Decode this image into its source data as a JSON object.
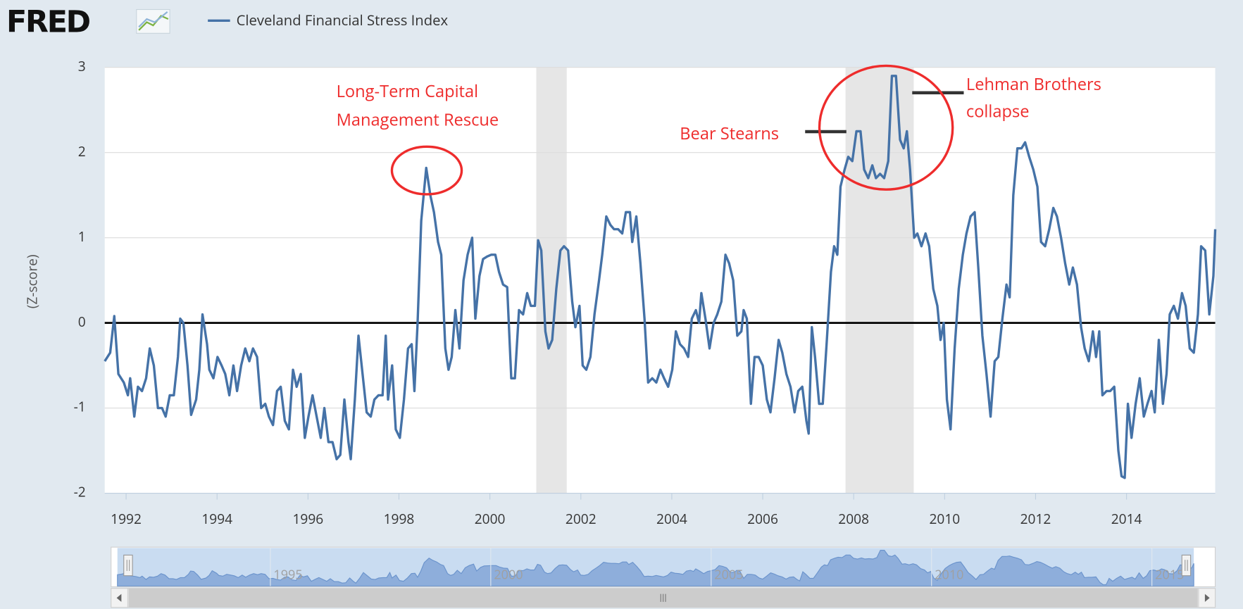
{
  "brand": "FRED",
  "chart_data": {
    "type": "line",
    "y_label": "(Z-score)",
    "xlim": [
      1991.53,
      2015.95
    ],
    "xticks": [
      1992,
      1994,
      1996,
      1998,
      2000,
      2002,
      2004,
      2006,
      2008,
      2010,
      2012,
      2014
    ],
    "ylim": [
      -2,
      3
    ],
    "yticks": [
      -2,
      -1,
      0,
      1,
      2,
      3
    ],
    "grid": true,
    "recessions": [
      [
        2001.02,
        2001.69
      ],
      [
        2007.82,
        2009.32
      ]
    ],
    "navigator_xticks": [
      1995,
      2000,
      2005,
      2010,
      2015
    ],
    "annotations": [
      [
        "Long-Term Capital",
        "Management Rescue"
      ],
      [
        "Bear Stearns"
      ],
      [
        "Lehman Brothers",
        "collapse"
      ]
    ],
    "x": [
      1991.53,
      1991.65,
      1991.74,
      1991.83,
      1991.95,
      1992.04,
      1992.09,
      1992.18,
      1992.26,
      1992.35,
      1992.44,
      1992.52,
      1992.61,
      1992.7,
      1992.79,
      1992.87,
      1992.96,
      1993.05,
      1993.14,
      1993.19,
      1993.26,
      1993.35,
      1993.43,
      1993.54,
      1993.61,
      1993.68,
      1993.78,
      1993.83,
      1993.92,
      1994.01,
      1994.1,
      1994.18,
      1994.27,
      1994.36,
      1994.44,
      1994.53,
      1994.62,
      1994.71,
      1994.79,
      1994.88,
      1994.97,
      1995.06,
      1995.14,
      1995.23,
      1995.32,
      1995.4,
      1995.49,
      1995.58,
      1995.67,
      1995.75,
      1995.84,
      1995.93,
      1996.01,
      1996.1,
      1996.19,
      1996.28,
      1996.36,
      1996.45,
      1996.54,
      1996.63,
      1996.71,
      1996.8,
      1996.89,
      1996.94,
      1997.03,
      1997.11,
      1997.2,
      1997.29,
      1997.38,
      1997.46,
      1997.55,
      1997.64,
      1997.71,
      1997.76,
      1997.85,
      1997.93,
      1998.02,
      1998.11,
      1998.2,
      1998.28,
      1998.34,
      1998.41,
      1998.49,
      1998.6,
      1998.69,
      1998.77,
      1998.86,
      1998.93,
      1999.02,
      1999.09,
      1999.16,
      1999.24,
      1999.33,
      1999.42,
      1999.51,
      1999.61,
      1999.68,
      1999.77,
      1999.85,
      1999.94,
      2000.03,
      2000.12,
      2000.2,
      2000.29,
      2000.38,
      2000.47,
      2000.55,
      2000.64,
      2000.73,
      2000.82,
      2000.9,
      2000.99,
      2001.06,
      2001.13,
      2001.22,
      2001.29,
      2001.37,
      2001.46,
      2001.55,
      2001.63,
      2001.72,
      2001.81,
      2001.88,
      2001.97,
      2002.04,
      2002.12,
      2002.21,
      2002.3,
      2002.4,
      2002.47,
      2002.56,
      2002.65,
      2002.73,
      2002.82,
      2002.91,
      2002.99,
      2003.08,
      2003.13,
      2003.22,
      2003.31,
      2003.4,
      2003.48,
      2003.57,
      2003.66,
      2003.75,
      2003.83,
      2003.92,
      2004.01,
      2004.09,
      2004.18,
      2004.27,
      2004.36,
      2004.44,
      2004.53,
      2004.6,
      2004.65,
      2004.74,
      2004.83,
      2004.92,
      2005.0,
      2005.09,
      2005.18,
      2005.26,
      2005.35,
      2005.44,
      2005.53,
      2005.58,
      2005.65,
      2005.74,
      2005.82,
      2005.91,
      2006.0,
      2006.09,
      2006.17,
      2006.26,
      2006.35,
      2006.43,
      2006.52,
      2006.61,
      2006.7,
      2006.78,
      2006.87,
      2006.96,
      2007.01,
      2007.08,
      2007.15,
      2007.24,
      2007.32,
      2007.41,
      2007.5,
      2007.57,
      2007.64,
      2007.71,
      2007.8,
      2007.88,
      2007.97,
      2008.06,
      2008.15,
      2008.23,
      2008.32,
      2008.41,
      2008.49,
      2008.58,
      2008.67,
      2008.76,
      2008.84,
      2008.93,
      2009.02,
      2009.1,
      2009.17,
      2009.24,
      2009.33,
      2009.4,
      2009.49,
      2009.58,
      2009.66,
      2009.75,
      2009.84,
      2009.91,
      2009.98,
      2010.05,
      2010.13,
      2010.22,
      2010.31,
      2010.4,
      2010.48,
      2010.57,
      2010.66,
      2010.74,
      2010.83,
      2010.92,
      2011.01,
      2011.1,
      2011.18,
      2011.27,
      2011.36,
      2011.43,
      2011.51,
      2011.6,
      2011.69,
      2011.77,
      2011.86,
      2011.95,
      2012.04,
      2012.12,
      2012.21,
      2012.3,
      2012.39,
      2012.47,
      2012.56,
      2012.65,
      2012.74,
      2012.82,
      2012.91,
      2013.0,
      2013.08,
      2013.17,
      2013.26,
      2013.33,
      2013.4,
      2013.47,
      2013.56,
      2013.64,
      2013.73,
      2013.82,
      2013.89,
      2013.96,
      2014.03,
      2014.11,
      2014.2,
      2014.29,
      2014.38,
      2014.46,
      2014.55,
      2014.62,
      2014.71,
      2014.8,
      2014.88,
      2014.95,
      2015.04,
      2015.13,
      2015.22,
      2015.3,
      2015.39,
      2015.48,
      2015.57,
      2015.64,
      2015.73,
      2015.82,
      2015.91,
      2015.95
    ],
    "series": [
      {
        "name": "Cleveland Financial Stress Index",
        "color": "#4572a7",
        "values": [
          -0.45,
          -0.35,
          0.08,
          -0.6,
          -0.7,
          -0.85,
          -0.65,
          -1.1,
          -0.75,
          -0.8,
          -0.65,
          -0.3,
          -0.5,
          -1.0,
          -1.0,
          -1.1,
          -0.85,
          -0.85,
          -0.4,
          0.05,
          0.0,
          -0.5,
          -1.08,
          -0.9,
          -0.55,
          0.1,
          -0.25,
          -0.55,
          -0.65,
          -0.4,
          -0.5,
          -0.6,
          -0.85,
          -0.5,
          -0.8,
          -0.5,
          -0.3,
          -0.45,
          -0.3,
          -0.4,
          -1.0,
          -0.95,
          -1.1,
          -1.2,
          -0.8,
          -0.75,
          -1.15,
          -1.25,
          -0.55,
          -0.75,
          -0.6,
          -1.35,
          -1.1,
          -0.85,
          -1.1,
          -1.35,
          -1.0,
          -1.4,
          -1.4,
          -1.6,
          -1.55,
          -0.9,
          -1.4,
          -1.6,
          -0.9,
          -0.15,
          -0.6,
          -1.05,
          -1.1,
          -0.9,
          -0.85,
          -0.85,
          -0.15,
          -0.9,
          -0.5,
          -1.25,
          -1.35,
          -0.9,
          -0.3,
          -0.25,
          -0.8,
          0.0,
          1.2,
          1.82,
          1.5,
          1.3,
          0.95,
          0.8,
          -0.3,
          -0.55,
          -0.4,
          0.15,
          -0.3,
          0.5,
          0.8,
          1.0,
          0.05,
          0.55,
          0.75,
          0.78,
          0.8,
          0.8,
          0.6,
          0.45,
          0.42,
          -0.65,
          -0.65,
          0.15,
          0.1,
          0.35,
          0.2,
          0.2,
          0.97,
          0.85,
          -0.1,
          -0.3,
          -0.2,
          0.4,
          0.85,
          0.9,
          0.85,
          0.25,
          -0.05,
          0.2,
          -0.5,
          -0.55,
          -0.4,
          0.1,
          0.5,
          0.8,
          1.25,
          1.15,
          1.1,
          1.1,
          1.05,
          1.3,
          1.3,
          0.95,
          1.25,
          0.7,
          0.05,
          -0.7,
          -0.65,
          -0.7,
          -0.55,
          -0.65,
          -0.75,
          -0.55,
          -0.1,
          -0.25,
          -0.3,
          -0.4,
          0.05,
          0.15,
          0.0,
          0.35,
          0.05,
          -0.3,
          0.0,
          0.1,
          0.25,
          0.8,
          0.7,
          0.5,
          -0.15,
          -0.1,
          0.15,
          0.05,
          -0.95,
          -0.4,
          -0.4,
          -0.5,
          -0.9,
          -1.05,
          -0.65,
          -0.2,
          -0.35,
          -0.6,
          -0.75,
          -1.05,
          -0.8,
          -0.75,
          -1.15,
          -1.3,
          -0.05,
          -0.4,
          -0.95,
          -0.95,
          -0.2,
          0.6,
          0.9,
          0.8,
          1.6,
          1.8,
          1.95,
          1.9,
          2.25,
          2.25,
          1.8,
          1.7,
          1.85,
          1.7,
          1.75,
          1.7,
          1.9,
          2.9,
          2.9,
          2.15,
          2.05,
          2.25,
          1.8,
          1.0,
          1.05,
          0.9,
          1.05,
          0.9,
          0.4,
          0.2,
          -0.2,
          0.0,
          -0.9,
          -1.25,
          -0.3,
          0.4,
          0.8,
          1.05,
          1.25,
          1.3,
          0.65,
          -0.15,
          -0.6,
          -1.1,
          -0.45,
          -0.4,
          0.05,
          0.45,
          0.3,
          1.5,
          2.05,
          2.05,
          2.12,
          1.95,
          1.8,
          1.6,
          0.95,
          0.9,
          1.1,
          1.35,
          1.25,
          1.0,
          0.7,
          0.45,
          0.65,
          0.45,
          -0.05,
          -0.3,
          -0.45,
          -0.1,
          -0.4,
          -0.1,
          -0.85,
          -0.8,
          -0.8,
          -0.75,
          -1.5,
          -1.8,
          -1.82,
          -0.95,
          -1.35,
          -0.95,
          -0.65,
          -1.1,
          -0.95,
          -0.8,
          -1.05,
          -0.2,
          -0.95,
          -0.6,
          0.1,
          0.2,
          0.05,
          0.35,
          0.2,
          -0.3,
          -0.35,
          0.1,
          0.9,
          0.85,
          0.1,
          0.55,
          1.1
        ]
      }
    ]
  }
}
